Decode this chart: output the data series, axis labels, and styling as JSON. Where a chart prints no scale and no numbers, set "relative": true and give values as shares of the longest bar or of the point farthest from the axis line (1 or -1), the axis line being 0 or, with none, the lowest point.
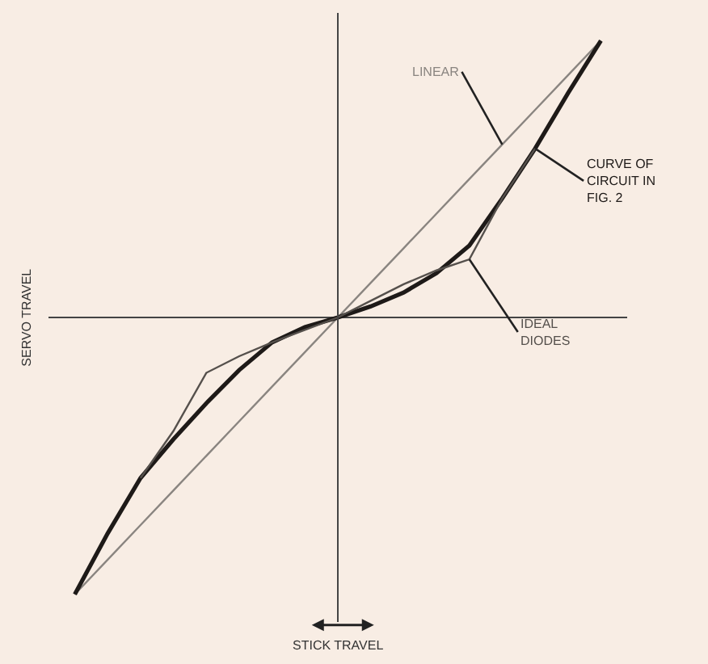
{
  "chart_data": {
    "type": "line",
    "relative": true,
    "xlabel": "STICK TRAVEL",
    "ylabel": "SERVO TRAVEL",
    "legend": false,
    "grid": false,
    "marker": "none",
    "line_style": "solid",
    "categories": [
      null,
      null,
      null,
      null,
      null,
      null,
      null,
      null,
      null,
      null,
      null,
      null,
      null,
      null,
      null,
      null,
      null
    ],
    "series": [
      {
        "name": "LINEAR",
        "color": "#8a8580",
        "values": [
          -1.0,
          -0.875,
          -0.75,
          -0.625,
          -0.5,
          -0.375,
          -0.25,
          -0.125,
          0,
          0.125,
          0.25,
          0.375,
          0.5,
          0.625,
          0.75,
          0.875,
          1.0
        ]
      },
      {
        "name": "CURVE OF CIRCUIT IN FIG. 2",
        "color": "#1e1a18",
        "values": [
          -1.0,
          -0.78,
          -0.58,
          -0.44,
          -0.31,
          -0.19,
          -0.09,
          -0.035,
          0,
          0.04,
          0.09,
          0.16,
          0.26,
          0.43,
          0.61,
          0.81,
          1.0
        ]
      },
      {
        "name": "IDEAL DIODES",
        "color": "#55504c",
        "values": [
          null,
          null,
          -0.58,
          -0.41,
          -0.2,
          -0.14,
          -0.09,
          -0.045,
          0,
          0.06,
          0.12,
          0.17,
          0.21,
          0.43,
          0.61,
          null,
          null
        ]
      }
    ]
  }
}
